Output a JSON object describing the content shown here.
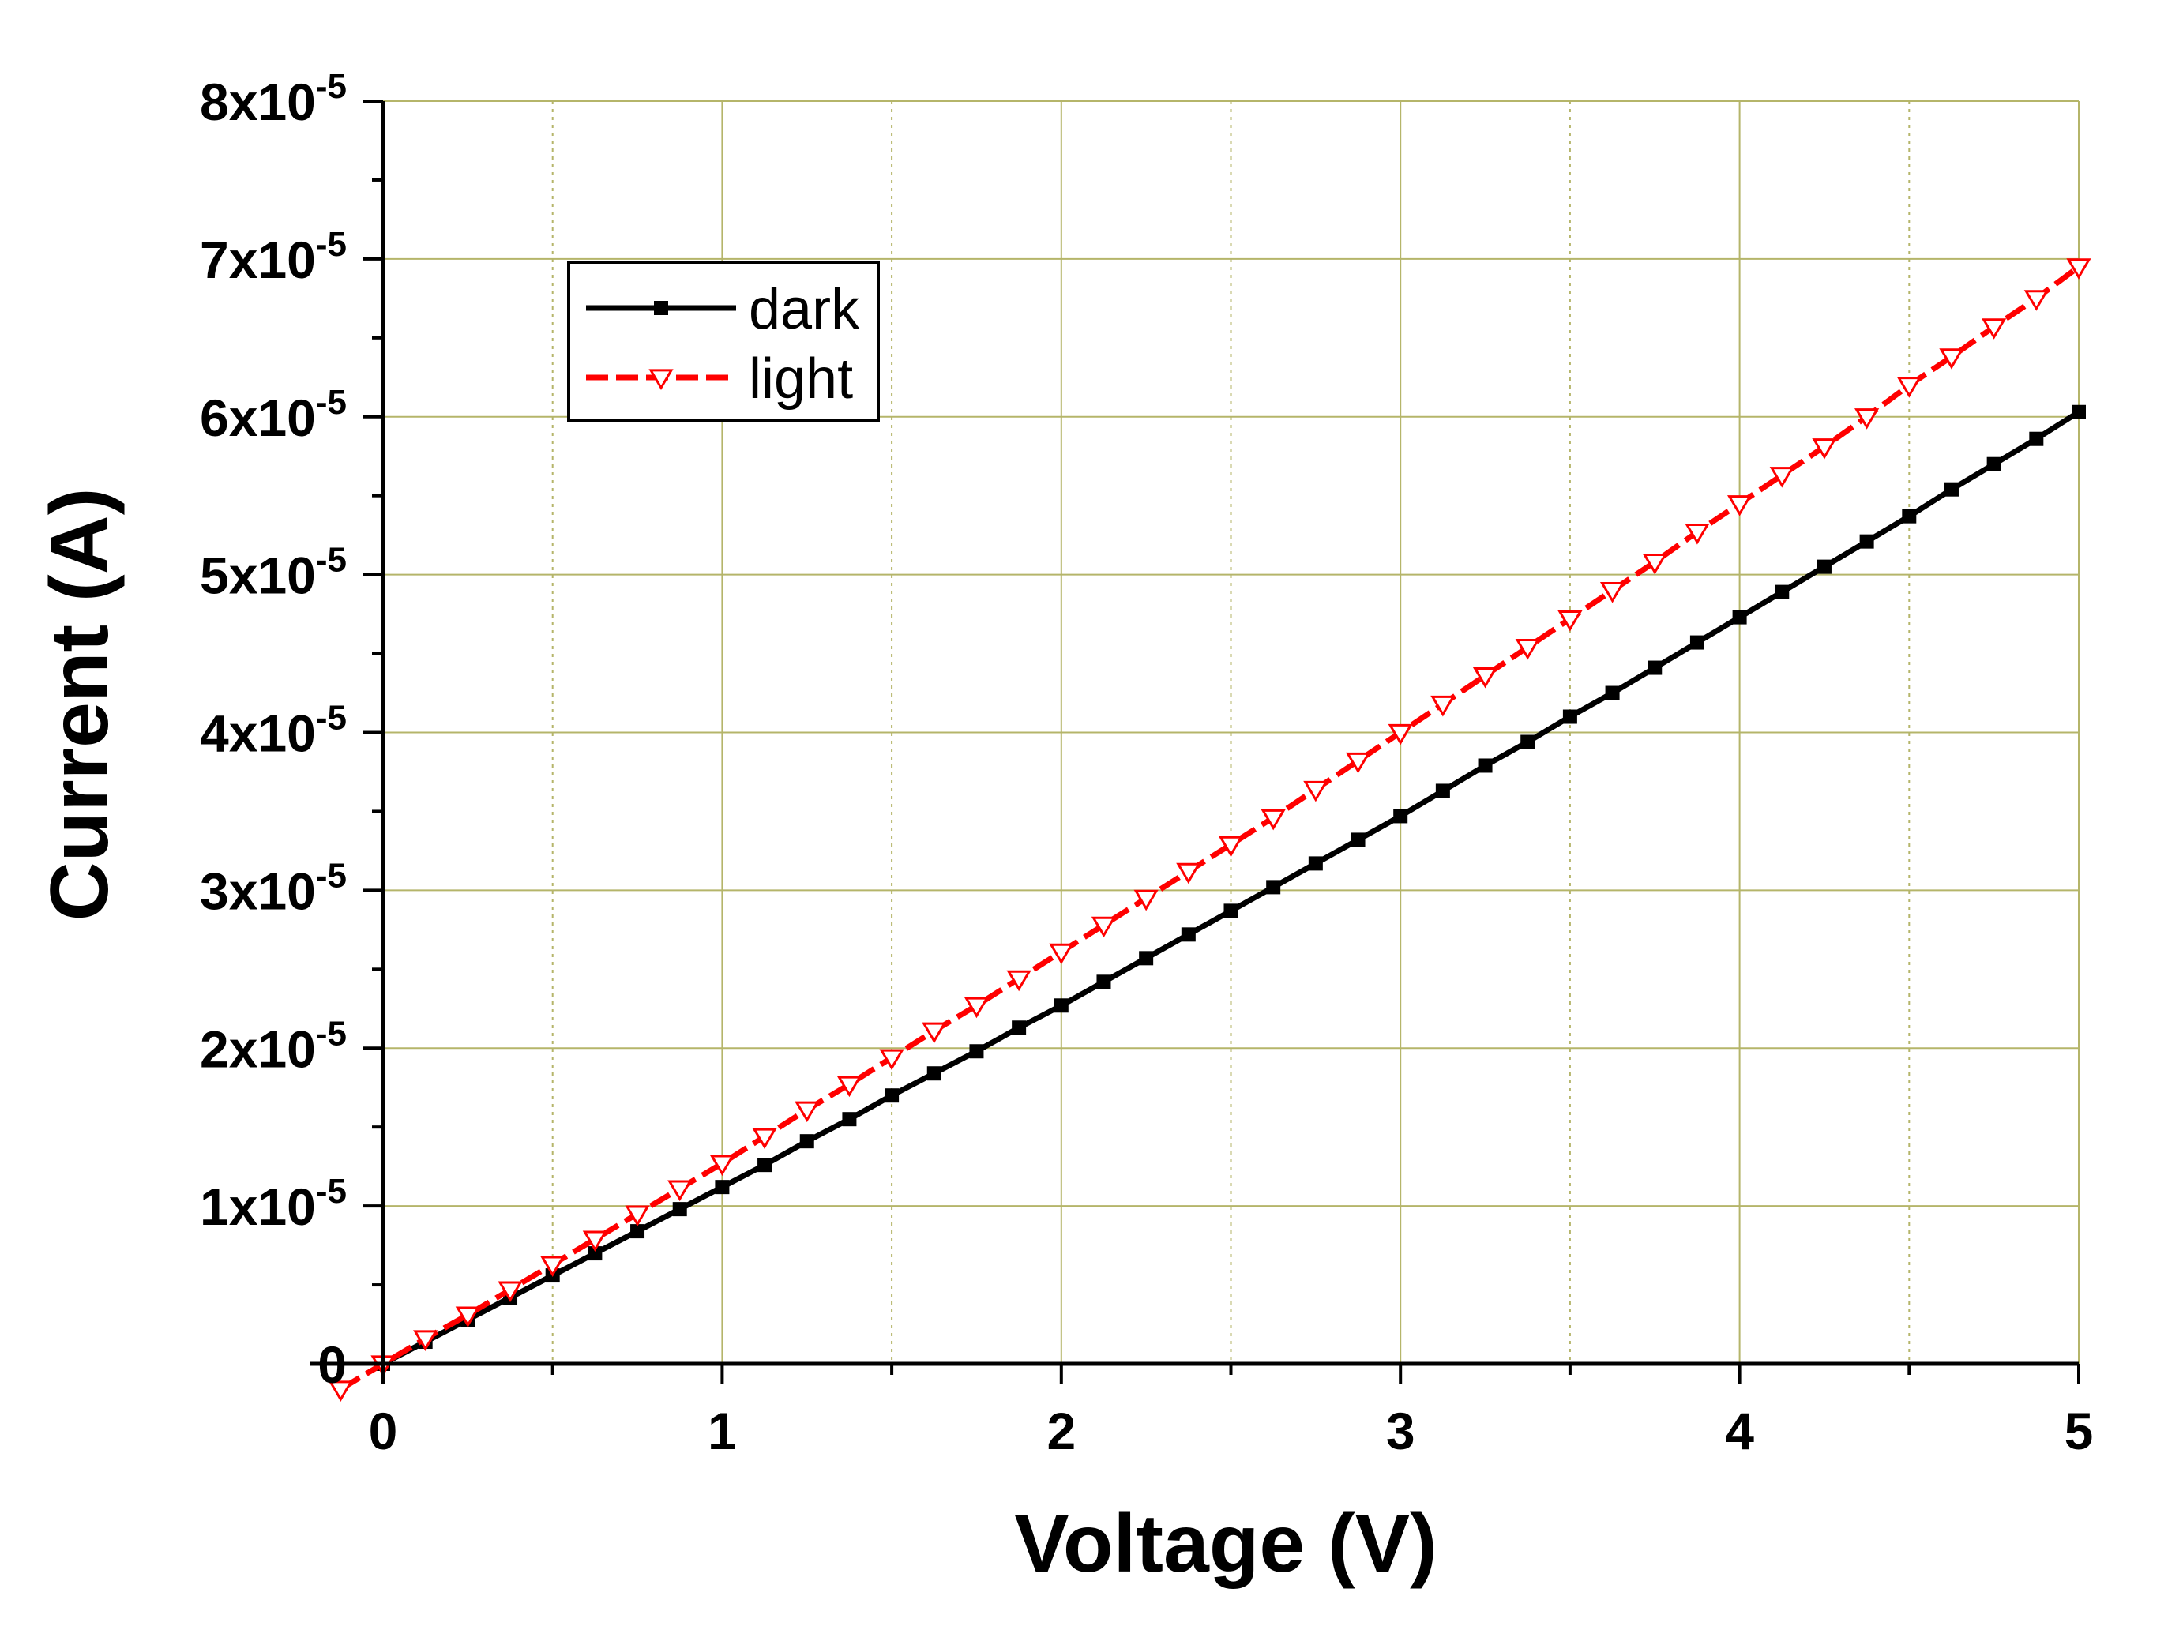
{
  "chart_data": {
    "type": "line",
    "xlabel": "Voltage (V)",
    "ylabel": "Current (A)",
    "xlim": [
      -0.15,
      5.0
    ],
    "ylim": [
      0,
      8e-05
    ],
    "grid": true,
    "legend_position": "top-left",
    "x_ticks": [
      {
        "value": 0,
        "label": "0"
      },
      {
        "value": 1,
        "label": "1"
      },
      {
        "value": 2,
        "label": "2"
      },
      {
        "value": 3,
        "label": "3"
      },
      {
        "value": 4,
        "label": "4"
      },
      {
        "value": 5,
        "label": "5"
      }
    ],
    "y_ticks": [
      {
        "value": 0,
        "mantissa": "0",
        "exponent": ""
      },
      {
        "value": 1e-05,
        "mantissa": "1x10",
        "exponent": "-5"
      },
      {
        "value": 2e-05,
        "mantissa": "2x10",
        "exponent": "-5"
      },
      {
        "value": 3e-05,
        "mantissa": "3x10",
        "exponent": "-5"
      },
      {
        "value": 4e-05,
        "mantissa": "4x10",
        "exponent": "-5"
      },
      {
        "value": 5e-05,
        "mantissa": "5x10",
        "exponent": "-5"
      },
      {
        "value": 6e-05,
        "mantissa": "6x10",
        "exponent": "-5"
      },
      {
        "value": 7e-05,
        "mantissa": "7x10",
        "exponent": "-5"
      },
      {
        "value": 8e-05,
        "mantissa": "8x10",
        "exponent": "-5"
      }
    ],
    "series": [
      {
        "name": "dark",
        "color": "#000000",
        "line_style": "solid",
        "marker": "square",
        "x": [
          0,
          0.125,
          0.25,
          0.375,
          0.5,
          0.625,
          0.75,
          0.875,
          1.0,
          1.125,
          1.25,
          1.375,
          1.5,
          1.625,
          1.75,
          1.875,
          2.0,
          2.125,
          2.25,
          2.375,
          2.5,
          2.625,
          2.75,
          2.875,
          3.0,
          3.125,
          3.25,
          3.375,
          3.5,
          3.625,
          3.75,
          3.875,
          4.0,
          4.125,
          4.25,
          4.375,
          4.5,
          4.625,
          4.75,
          4.875,
          5.0
        ],
        "y": [
          0,
          1.4e-06,
          2.8e-06,
          4.2e-06,
          5.6e-06,
          7e-06,
          8.4e-06,
          9.8e-06,
          1.12e-05,
          1.26e-05,
          1.41e-05,
          1.55e-05,
          1.7e-05,
          1.84e-05,
          1.98e-05,
          2.13e-05,
          2.27e-05,
          2.42e-05,
          2.57e-05,
          2.72e-05,
          2.87e-05,
          3.02e-05,
          3.17e-05,
          3.32e-05,
          3.47e-05,
          3.63e-05,
          3.79e-05,
          3.94e-05,
          4.1e-05,
          4.25e-05,
          4.41e-05,
          4.57e-05,
          4.73e-05,
          4.89e-05,
          5.05e-05,
          5.21e-05,
          5.37e-05,
          5.54e-05,
          5.7e-05,
          5.86e-05,
          6.03e-05
        ]
      },
      {
        "name": "light",
        "color": "#ff0000",
        "line_style": "dashed",
        "marker": "down-triangle",
        "x": [
          -0.125,
          0,
          0.125,
          0.25,
          0.375,
          0.5,
          0.625,
          0.75,
          0.875,
          1.0,
          1.125,
          1.25,
          1.375,
          1.5,
          1.625,
          1.75,
          1.875,
          2.0,
          2.125,
          2.25,
          2.375,
          2.5,
          2.625,
          2.75,
          2.875,
          3.0,
          3.125,
          3.25,
          3.375,
          3.5,
          3.625,
          3.75,
          3.875,
          4.0,
          4.125,
          4.25,
          4.375,
          4.5,
          4.625,
          4.75,
          4.875,
          5.0
        ],
        "y": [
          -1.6e-06,
          0,
          1.6e-06,
          3.1e-06,
          4.7e-06,
          6.3e-06,
          7.9e-06,
          9.5e-06,
          1.11e-05,
          1.27e-05,
          1.44e-05,
          1.61e-05,
          1.77e-05,
          1.94e-05,
          2.11e-05,
          2.27e-05,
          2.44e-05,
          2.61e-05,
          2.78e-05,
          2.95e-05,
          3.12e-05,
          3.29e-05,
          3.46e-05,
          3.64e-05,
          3.82e-05,
          4e-05,
          4.18e-05,
          4.36e-05,
          4.54e-05,
          4.72e-05,
          4.9e-05,
          5.08e-05,
          5.27e-05,
          5.45e-05,
          5.63e-05,
          5.81e-05,
          6e-05,
          6.2e-05,
          6.38e-05,
          6.57e-05,
          6.75e-05,
          6.95e-05
        ]
      }
    ]
  }
}
